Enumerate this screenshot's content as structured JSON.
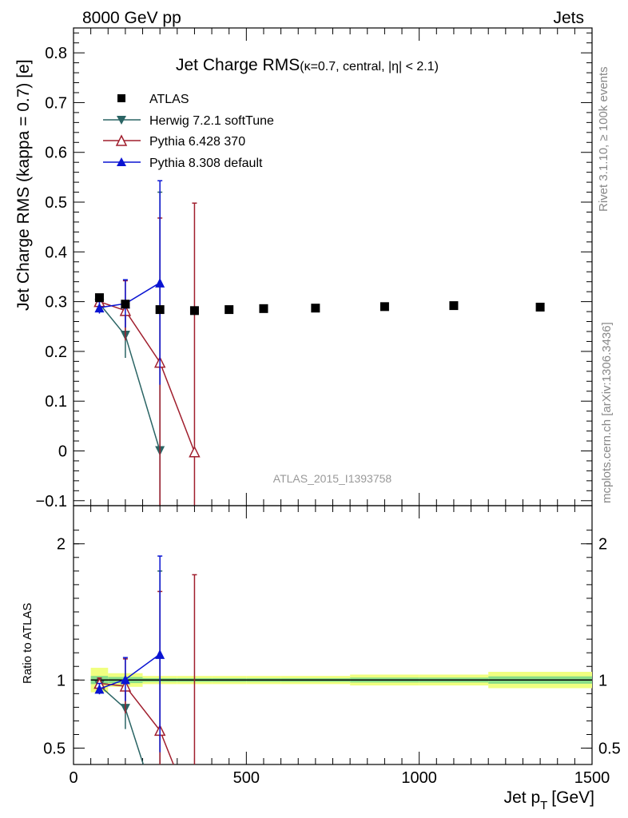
{
  "header": {
    "energy_label": "8000 GeV pp",
    "category_label": "Jets",
    "rivet_label": "Rivet 3.1.10, ≥ 100k events",
    "mcplots_label": "mcplots.cern.ch [arXiv:1306.3436]",
    "analysis_label": "ATLAS_2015_I1393758",
    "title_main": "Jet Charge RMS",
    "title_sub": "(κ=0.7, central, |η| < 2.1)"
  },
  "chart_data": [
    {
      "type": "scatter",
      "panel": "main",
      "ylabel": "Jet Charge RMS (kappa = 0.7) [e]",
      "xlim": [
        0,
        1500
      ],
      "ylim": [
        -0.11,
        0.85
      ],
      "yticks": [
        -0.1,
        0,
        0.1,
        0.2,
        0.3,
        0.4,
        0.5,
        0.6,
        0.7,
        0.8
      ],
      "yticklabels": [
        "−0.1",
        "0",
        "0.1",
        "0.2",
        "0.3",
        "0.4",
        "0.5",
        "0.6",
        "0.7",
        "0.8"
      ],
      "legend_position": "top-left",
      "series": [
        {
          "name": "ATLAS",
          "marker": "square",
          "color": "#000000",
          "x": [
            75,
            150,
            250,
            350,
            450,
            550,
            700,
            900,
            1100,
            1350
          ],
          "y": [
            0.308,
            0.295,
            0.284,
            0.282,
            0.284,
            0.286,
            0.287,
            0.29,
            0.292,
            0.289
          ]
        },
        {
          "name": "Herwig 7.2.1 softTune",
          "marker": "triangle-down",
          "color": "#2a6464",
          "x": [
            75,
            150,
            250
          ],
          "y": [
            0.296,
            0.232,
            0.0
          ],
          "yerr": [
            0.015,
            0.045,
            0.52
          ]
        },
        {
          "name": "Pythia 6.428 370",
          "marker": "triangle-up-open",
          "color": "#a01e2d",
          "x": [
            75,
            150,
            250,
            350
          ],
          "y": [
            0.3,
            0.282,
            0.178,
            -0.002
          ],
          "yerr": [
            0.012,
            0.06,
            0.29,
            0.5
          ]
        },
        {
          "name": "Pythia 8.308 default",
          "marker": "triangle-up",
          "color": "#0a14d2",
          "x": [
            75,
            150,
            250
          ],
          "y": [
            0.288,
            0.296,
            0.338
          ],
          "yerr": [
            0.012,
            0.048,
            0.205
          ]
        }
      ]
    },
    {
      "type": "line",
      "panel": "ratio",
      "xlabel": "Jet p_T [GeV]",
      "xlabel_main": "Jet p",
      "xlabel_sub": "T",
      "xlabel_unit": "[GeV]",
      "ylabel": "Ratio to ATLAS",
      "xlim": [
        0,
        1500
      ],
      "ylim": [
        0.38,
        2.28
      ],
      "xticks": [
        0,
        500,
        1000,
        1500
      ],
      "yticks": [
        0.5,
        1,
        2
      ],
      "band_color": "#f0ff80",
      "band_inner_color": "#88dd88",
      "series": [
        {
          "name": "Herwig 7.2.1 softTune",
          "x": [
            75,
            150,
            250
          ],
          "y": [
            0.96,
            0.79,
            0.0
          ],
          "yerr": [
            0.05,
            0.15,
            1.8
          ]
        },
        {
          "name": "Pythia 6.428 370",
          "x": [
            75,
            150,
            250,
            350
          ],
          "y": [
            0.975,
            0.955,
            0.63,
            -0.007
          ],
          "yerr": [
            0.04,
            0.2,
            1.02,
            1.78
          ]
        },
        {
          "name": "Pythia 8.308 default",
          "x": [
            75,
            150,
            250
          ],
          "y": [
            0.935,
            1.005,
            1.19
          ],
          "yerr": [
            0.04,
            0.16,
            0.72
          ]
        }
      ]
    }
  ]
}
